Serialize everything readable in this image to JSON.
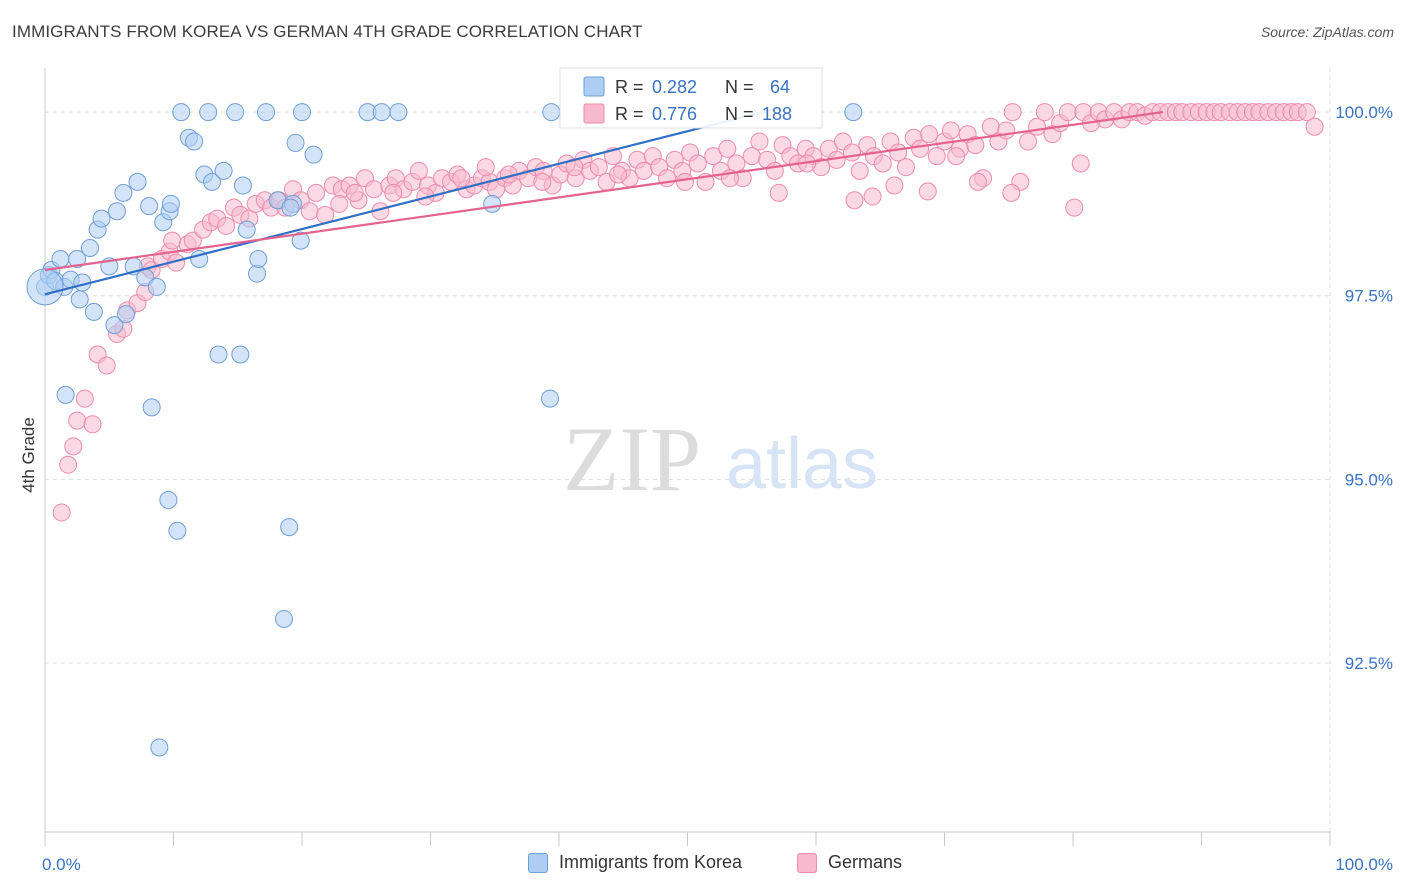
{
  "header": {
    "title": "IMMIGRANTS FROM KOREA VS GERMAN 4TH GRADE CORRELATION CHART",
    "source": "Source: ZipAtlas.com"
  },
  "watermark": {
    "zip": "ZIP",
    "atlas": "atlas"
  },
  "colors": {
    "korea_fill": "#aecdf2",
    "korea_stroke": "#6f9fd8",
    "korea_line": "#2f6fc6",
    "german_fill": "#f6b9cd",
    "german_stroke": "#ee8cab",
    "german_line": "#e4628f",
    "value_text": "#3a72c4",
    "grid": "#dddddd"
  },
  "chart_data": {
    "type": "scatter",
    "title": "IMMIGRANTS FROM KOREA VS GERMAN 4TH GRADE CORRELATION CHART",
    "xlabel": "",
    "ylabel": "4th Grade",
    "xlim": [
      0,
      100
    ],
    "ylim": [
      90.2,
      100.6
    ],
    "x_tick_labels": [
      {
        "value": 0,
        "label": "0.0%"
      },
      {
        "value": 100,
        "label": "100.0%"
      }
    ],
    "y_tick_labels": [
      {
        "value": 92.5,
        "label": "92.5%"
      },
      {
        "value": 95.0,
        "label": "95.0%"
      },
      {
        "value": 97.5,
        "label": "97.5%"
      },
      {
        "value": 100.0,
        "label": "100.0%"
      }
    ],
    "grid": true,
    "legend_position": "top-center",
    "stats": [
      {
        "series": "Immigrants from Korea",
        "r_label": "R =",
        "r_value": "0.282",
        "n_label": "N =",
        "n_value": "64"
      },
      {
        "series": "Germans",
        "r_label": "R =",
        "r_value": "0.776",
        "n_label": "N =",
        "n_value": "188"
      }
    ],
    "series": [
      {
        "name": "Immigrants from Korea",
        "trend": {
          "x": [
            0,
            57
          ],
          "y": [
            97.52,
            100.05
          ]
        },
        "points": [
          [
            0,
            97.62
          ],
          [
            0.3,
            97.78
          ],
          [
            0.5,
            97.85
          ],
          [
            0.8,
            97.7
          ],
          [
            1.2,
            98.0
          ],
          [
            1.5,
            97.62
          ],
          [
            1.6,
            96.15
          ],
          [
            2,
            97.72
          ],
          [
            2.5,
            98.0
          ],
          [
            2.7,
            97.45
          ],
          [
            2.9,
            97.68
          ],
          [
            3.5,
            98.15
          ],
          [
            3.8,
            97.28
          ],
          [
            4.1,
            98.4
          ],
          [
            4.4,
            98.55
          ],
          [
            5,
            97.9
          ],
          [
            5.4,
            97.1
          ],
          [
            5.6,
            98.65
          ],
          [
            6.1,
            98.9
          ],
          [
            6.3,
            97.25
          ],
          [
            6.9,
            97.9
          ],
          [
            7.2,
            99.05
          ],
          [
            7.8,
            97.75
          ],
          [
            8.1,
            98.72
          ],
          [
            8.3,
            95.98
          ],
          [
            8.7,
            97.62
          ],
          [
            8.9,
            91.35
          ],
          [
            9.2,
            98.5
          ],
          [
            9.6,
            94.72
          ],
          [
            9.7,
            98.65
          ],
          [
            9.8,
            98.75
          ],
          [
            10.3,
            94.3
          ],
          [
            10.6,
            100.0
          ],
          [
            11.2,
            99.65
          ],
          [
            11.6,
            99.6
          ],
          [
            12,
            98.0
          ],
          [
            12.4,
            99.15
          ],
          [
            12.7,
            100.0
          ],
          [
            13,
            99.05
          ],
          [
            13.5,
            96.7
          ],
          [
            13.9,
            99.2
          ],
          [
            14.8,
            100.0
          ],
          [
            15.2,
            96.7
          ],
          [
            15.4,
            99.0
          ],
          [
            15.7,
            98.4
          ],
          [
            16.5,
            97.8
          ],
          [
            16.6,
            98.0
          ],
          [
            17.2,
            100.0
          ],
          [
            18.1,
            98.8
          ],
          [
            18.6,
            93.1
          ],
          [
            19,
            94.35
          ],
          [
            19.3,
            98.75
          ],
          [
            19.5,
            99.58
          ],
          [
            19.1,
            98.7
          ],
          [
            19.9,
            98.25
          ],
          [
            20,
            100.0
          ],
          [
            20.9,
            99.42
          ],
          [
            25.1,
            100.0
          ],
          [
            26.2,
            100.0
          ],
          [
            27.5,
            100.0
          ],
          [
            34.8,
            98.75
          ],
          [
            39.3,
            96.1
          ],
          [
            39.4,
            100.0
          ],
          [
            62.9,
            100.0
          ]
        ]
      },
      {
        "name": "Germans",
        "trend": {
          "x": [
            0,
            87
          ],
          "y": [
            97.85,
            100.0
          ]
        },
        "points": [
          [
            1.3,
            94.55
          ],
          [
            1.8,
            95.2
          ],
          [
            2.2,
            95.45
          ],
          [
            2.5,
            95.8
          ],
          [
            3.1,
            96.1
          ],
          [
            3.7,
            95.75
          ],
          [
            4.1,
            96.7
          ],
          [
            4.8,
            96.55
          ],
          [
            5.6,
            96.98
          ],
          [
            6.1,
            97.05
          ],
          [
            6.4,
            97.3
          ],
          [
            7.2,
            97.4
          ],
          [
            7.8,
            97.55
          ],
          [
            8.0,
            97.9
          ],
          [
            8.3,
            97.85
          ],
          [
            9.1,
            98.0
          ],
          [
            9.7,
            98.1
          ],
          [
            9.9,
            98.25
          ],
          [
            10.2,
            97.95
          ],
          [
            11.1,
            98.2
          ],
          [
            11.5,
            98.25
          ],
          [
            12.3,
            98.4
          ],
          [
            12.9,
            98.5
          ],
          [
            13.4,
            98.55
          ],
          [
            14.1,
            98.45
          ],
          [
            14.7,
            98.7
          ],
          [
            15.2,
            98.6
          ],
          [
            15.9,
            98.55
          ],
          [
            16.4,
            98.75
          ],
          [
            17.1,
            98.8
          ],
          [
            17.6,
            98.7
          ],
          [
            18.2,
            98.8
          ],
          [
            18.7,
            98.7
          ],
          [
            19.3,
            98.95
          ],
          [
            19.9,
            98.8
          ],
          [
            20.6,
            98.65
          ],
          [
            21.1,
            98.9
          ],
          [
            21.8,
            98.6
          ],
          [
            22.4,
            99.0
          ],
          [
            23.1,
            98.95
          ],
          [
            23.7,
            99.0
          ],
          [
            24.4,
            98.8
          ],
          [
            24.9,
            99.1
          ],
          [
            25.6,
            98.95
          ],
          [
            26.1,
            98.65
          ],
          [
            26.8,
            99.0
          ],
          [
            27.3,
            99.1
          ],
          [
            27.9,
            98.95
          ],
          [
            28.6,
            99.05
          ],
          [
            29.1,
            99.2
          ],
          [
            29.8,
            99.0
          ],
          [
            30.4,
            98.9
          ],
          [
            30.9,
            99.1
          ],
          [
            31.6,
            99.05
          ],
          [
            32.1,
            99.15
          ],
          [
            32.8,
            98.95
          ],
          [
            33.4,
            99.0
          ],
          [
            34.0,
            99.1
          ],
          [
            34.6,
            99.05
          ],
          [
            35.1,
            98.95
          ],
          [
            35.8,
            99.1
          ],
          [
            36.4,
            99.0
          ],
          [
            36.9,
            99.2
          ],
          [
            37.6,
            99.1
          ],
          [
            38.2,
            99.25
          ],
          [
            38.8,
            99.2
          ],
          [
            39.5,
            99.0
          ],
          [
            40.1,
            99.15
          ],
          [
            40.6,
            99.3
          ],
          [
            41.3,
            99.1
          ],
          [
            41.9,
            99.35
          ],
          [
            42.4,
            99.2
          ],
          [
            43.1,
            99.25
          ],
          [
            43.7,
            99.05
          ],
          [
            44.2,
            99.4
          ],
          [
            44.9,
            99.2
          ],
          [
            45.5,
            99.1
          ],
          [
            46.1,
            99.35
          ],
          [
            46.6,
            99.2
          ],
          [
            47.3,
            99.4
          ],
          [
            47.8,
            99.25
          ],
          [
            48.4,
            99.1
          ],
          [
            49.0,
            99.35
          ],
          [
            49.6,
            99.2
          ],
          [
            50.2,
            99.45
          ],
          [
            50.8,
            99.3
          ],
          [
            51.4,
            99.05
          ],
          [
            52.0,
            99.4
          ],
          [
            52.6,
            99.2
          ],
          [
            53.1,
            99.5
          ],
          [
            53.8,
            99.3
          ],
          [
            54.3,
            99.1
          ],
          [
            55.0,
            99.4
          ],
          [
            55.6,
            99.6
          ],
          [
            56.2,
            99.35
          ],
          [
            56.8,
            99.2
          ],
          [
            57.4,
            99.55
          ],
          [
            58.0,
            99.4
          ],
          [
            58.6,
            99.3
          ],
          [
            59.2,
            99.5
          ],
          [
            59.8,
            99.4
          ],
          [
            60.4,
            99.25
          ],
          [
            61.0,
            99.5
          ],
          [
            61.6,
            99.35
          ],
          [
            62.1,
            99.6
          ],
          [
            62.8,
            99.45
          ],
          [
            63.4,
            99.2
          ],
          [
            64.0,
            99.55
          ],
          [
            64.5,
            99.4
          ],
          [
            65.2,
            99.3
          ],
          [
            65.8,
            99.6
          ],
          [
            66.4,
            99.45
          ],
          [
            67.0,
            99.25
          ],
          [
            67.6,
            99.65
          ],
          [
            68.1,
            99.5
          ],
          [
            68.8,
            99.7
          ],
          [
            69.4,
            99.4
          ],
          [
            70.0,
            99.6
          ],
          [
            70.5,
            99.75
          ],
          [
            71.2,
            99.5
          ],
          [
            71.8,
            99.7
          ],
          [
            72.4,
            99.55
          ],
          [
            73.0,
            99.1
          ],
          [
            73.6,
            99.8
          ],
          [
            74.2,
            99.6
          ],
          [
            74.8,
            99.75
          ],
          [
            75.3,
            100.0
          ],
          [
            75.9,
            99.05
          ],
          [
            76.5,
            99.6
          ],
          [
            77.2,
            99.8
          ],
          [
            77.8,
            100.0
          ],
          [
            78.4,
            99.7
          ],
          [
            79.0,
            99.85
          ],
          [
            79.6,
            100.0
          ],
          [
            80.1,
            98.7
          ],
          [
            80.8,
            100.0
          ],
          [
            81.4,
            99.85
          ],
          [
            82.0,
            100.0
          ],
          [
            82.5,
            99.9
          ],
          [
            83.2,
            100.0
          ],
          [
            83.8,
            99.9
          ],
          [
            84.4,
            100.0
          ],
          [
            85.0,
            100.0
          ],
          [
            85.6,
            99.95
          ],
          [
            86.2,
            100.0
          ],
          [
            86.8,
            100.0
          ],
          [
            87.4,
            100.0
          ],
          [
            88.0,
            100.0
          ],
          [
            88.5,
            100.0
          ],
          [
            89.2,
            100.0
          ],
          [
            89.8,
            100.0
          ],
          [
            90.4,
            100.0
          ],
          [
            91.0,
            100.0
          ],
          [
            91.5,
            100.0
          ],
          [
            92.2,
            100.0
          ],
          [
            92.8,
            100.0
          ],
          [
            93.4,
            100.0
          ],
          [
            94.0,
            100.0
          ],
          [
            94.5,
            100.0
          ],
          [
            95.2,
            100.0
          ],
          [
            95.8,
            100.0
          ],
          [
            96.4,
            100.0
          ],
          [
            97.0,
            100.0
          ],
          [
            97.5,
            100.0
          ],
          [
            98.2,
            100.0
          ],
          [
            98.8,
            99.8
          ],
          [
            63.0,
            98.8
          ],
          [
            64.4,
            98.85
          ],
          [
            68.7,
            98.92
          ],
          [
            72.6,
            99.05
          ],
          [
            57.1,
            98.9
          ],
          [
            59.3,
            99.3
          ],
          [
            66.1,
            99.0
          ],
          [
            75.2,
            98.9
          ],
          [
            70.9,
            99.4
          ],
          [
            80.6,
            99.3
          ],
          [
            53.3,
            99.1
          ],
          [
            49.8,
            99.05
          ],
          [
            44.6,
            99.15
          ],
          [
            41.2,
            99.25
          ],
          [
            38.7,
            99.05
          ],
          [
            36.1,
            99.15
          ],
          [
            22.9,
            98.75
          ],
          [
            24.1,
            98.9
          ],
          [
            27.1,
            98.9
          ],
          [
            29.6,
            98.85
          ],
          [
            32.4,
            99.1
          ],
          [
            34.3,
            99.25
          ]
        ]
      }
    ]
  },
  "bottom_legend": [
    {
      "label": "Immigrants from Korea"
    },
    {
      "label": "Germans"
    }
  ]
}
